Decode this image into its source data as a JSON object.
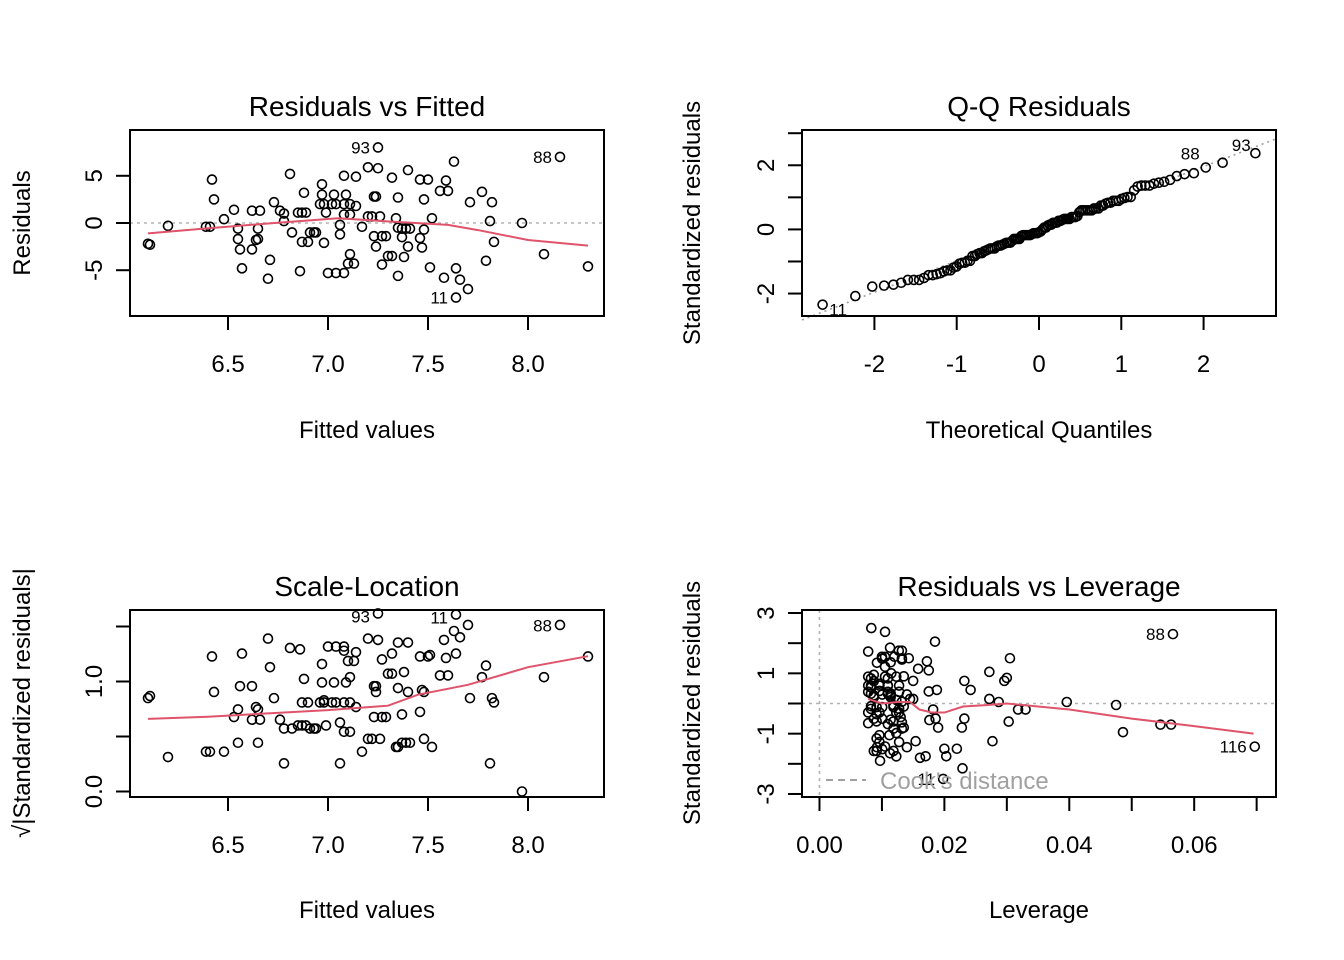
{
  "colors": {
    "smooth": "#DF536B",
    "points": "#000000",
    "reference": "#B3B3B3",
    "cooks": "#A0A0A0"
  },
  "chart_data": [
    {
      "id": "resid_fitted",
      "type": "scatter",
      "title": "Residuals vs Fitted",
      "xlabel": "Fitted values",
      "ylabel": "Residuals",
      "xlim": [
        6.01,
        8.38
      ],
      "ylim": [
        -9.85,
        9.85
      ],
      "xticks": [
        6.5,
        7.0,
        7.5,
        8.0
      ],
      "xtick_labels": [
        "6.5",
        "7.0",
        "7.5",
        "8.0"
      ],
      "yticks": [
        -5,
        0,
        5
      ],
      "ytick_labels": [
        "-5",
        "0",
        "5"
      ],
      "hline": 0,
      "points": [
        [
          6.1,
          -2.2
        ],
        [
          6.11,
          -2.3
        ],
        [
          6.2,
          -0.3
        ],
        [
          6.42,
          4.6
        ],
        [
          6.43,
          2.5
        ],
        [
          6.39,
          -0.4
        ],
        [
          6.41,
          -0.4
        ],
        [
          6.48,
          0.4
        ],
        [
          6.53,
          1.4
        ],
        [
          6.55,
          -0.6
        ],
        [
          6.55,
          -1.7
        ],
        [
          6.56,
          -2.8
        ],
        [
          6.57,
          -4.8
        ],
        [
          6.62,
          1.3
        ],
        [
          6.66,
          1.3
        ],
        [
          6.65,
          -0.6
        ],
        [
          6.64,
          -1.8
        ],
        [
          6.65,
          -1.7
        ],
        [
          6.62,
          -2.8
        ],
        [
          6.71,
          -3.9
        ],
        [
          6.7,
          -5.9
        ],
        [
          6.73,
          2.2
        ],
        [
          6.76,
          1.3
        ],
        [
          6.78,
          1.0
        ],
        [
          6.78,
          0.2
        ],
        [
          6.81,
          5.2
        ],
        [
          6.82,
          -1.0
        ],
        [
          6.85,
          1.1
        ],
        [
          6.87,
          1.1
        ],
        [
          6.89,
          1.1
        ],
        [
          6.88,
          3.2
        ],
        [
          6.87,
          -2.0
        ],
        [
          6.9,
          -2.0
        ],
        [
          6.91,
          -1.0
        ],
        [
          6.93,
          -1.0
        ],
        [
          6.94,
          -1.0
        ],
        [
          6.86,
          -5.1
        ],
        [
          6.98,
          -2.1
        ],
        [
          6.97,
          4.1
        ],
        [
          6.97,
          3.0
        ],
        [
          6.96,
          2.0
        ],
        [
          6.98,
          2.0
        ],
        [
          6.99,
          1.1
        ],
        [
          7.0,
          -5.3
        ],
        [
          7.04,
          -5.3
        ],
        [
          7.08,
          -5.3
        ],
        [
          7.03,
          3.0
        ],
        [
          7.02,
          2.0
        ],
        [
          7.04,
          2.0
        ],
        [
          7.08,
          5.0
        ],
        [
          7.14,
          4.9
        ],
        [
          7.09,
          3.0
        ],
        [
          7.08,
          2.0
        ],
        [
          7.11,
          2.0
        ],
        [
          7.14,
          1.8
        ],
        [
          7.11,
          0.9
        ],
        [
          7.08,
          0.9
        ],
        [
          7.06,
          -0.2
        ],
        [
          7.06,
          -1.2
        ],
        [
          7.11,
          -3.3
        ],
        [
          7.1,
          -4.3
        ],
        [
          7.13,
          -4.3
        ],
        [
          7.17,
          -0.4
        ],
        [
          7.2,
          5.9
        ],
        [
          7.25,
          8.0
        ],
        [
          7.25,
          5.8
        ],
        [
          7.23,
          2.8
        ],
        [
          7.24,
          2.8
        ],
        [
          7.2,
          0.7
        ],
        [
          7.22,
          0.7
        ],
        [
          7.26,
          0.7
        ],
        [
          7.23,
          -1.4
        ],
        [
          7.27,
          -1.4
        ],
        [
          7.29,
          -1.4
        ],
        [
          7.24,
          -2.5
        ],
        [
          7.3,
          -3.5
        ],
        [
          7.32,
          -3.5
        ],
        [
          7.27,
          -4.4
        ],
        [
          7.35,
          -5.6
        ],
        [
          7.32,
          4.8
        ],
        [
          7.4,
          5.6
        ],
        [
          7.35,
          2.7
        ],
        [
          7.34,
          0.5
        ],
        [
          7.35,
          -0.5
        ],
        [
          7.37,
          -0.6
        ],
        [
          7.39,
          -0.6
        ],
        [
          7.41,
          -0.6
        ],
        [
          7.37,
          -1.5
        ],
        [
          7.4,
          -2.5
        ],
        [
          7.38,
          -3.6
        ],
        [
          7.46,
          4.6
        ],
        [
          7.5,
          4.6
        ],
        [
          7.48,
          2.5
        ],
        [
          7.46,
          -1.6
        ],
        [
          7.47,
          -2.6
        ],
        [
          7.48,
          -0.7
        ],
        [
          7.52,
          0.5
        ],
        [
          7.51,
          -4.7
        ],
        [
          7.56,
          3.4
        ],
        [
          7.6,
          3.4
        ],
        [
          7.59,
          4.5
        ],
        [
          7.63,
          6.5
        ],
        [
          7.58,
          -5.8
        ],
        [
          7.64,
          -4.8
        ],
        [
          7.66,
          -6.0
        ],
        [
          7.64,
          -7.9
        ],
        [
          7.7,
          -7.0
        ],
        [
          7.71,
          2.2
        ],
        [
          7.77,
          3.3
        ],
        [
          7.82,
          2.2
        ],
        [
          7.81,
          0.2
        ],
        [
          7.83,
          -2.0
        ],
        [
          7.79,
          -4.0
        ],
        [
          7.97,
          0.0
        ],
        [
          8.08,
          -3.3
        ],
        [
          8.16,
          7.0
        ],
        [
          8.3,
          -4.6
        ]
      ],
      "smooth": [
        [
          6.1,
          -1.1
        ],
        [
          6.38,
          -0.6
        ],
        [
          6.7,
          -0.05
        ],
        [
          7.05,
          0.5
        ],
        [
          7.35,
          0.1
        ],
        [
          7.6,
          -0.2
        ],
        [
          7.75,
          -0.75
        ],
        [
          8.0,
          -1.8
        ],
        [
          8.3,
          -2.4
        ]
      ],
      "labels": [
        {
          "text": "93",
          "x": 7.25,
          "y": 8.0
        },
        {
          "text": "88",
          "x": 8.16,
          "y": 7.0
        },
        {
          "text": "11",
          "x": 7.64,
          "y": -7.9
        }
      ]
    },
    {
      "id": "qq",
      "type": "scatter",
      "title": "Q-Q Residuals",
      "xlabel": "Theoretical Quantiles",
      "ylabel": "Standardized residuals",
      "xlim": [
        -2.88,
        2.88
      ],
      "ylim": [
        -2.7,
        3.1
      ],
      "xticks": [
        -2,
        -1,
        0,
        1,
        2
      ],
      "xtick_labels": [
        "-2",
        "-1",
        "0",
        "1",
        "2"
      ],
      "yticks": [
        -2,
        -1,
        0,
        1,
        2,
        3
      ],
      "ytick_labels": [
        "-2",
        "",
        "0",
        "",
        "2",
        ""
      ],
      "n": 117,
      "refline": {
        "intercept": 0.0,
        "slope": 0.98
      },
      "labels": [
        {
          "text": "11",
          "x": -2.67,
          "y": -2.5
        },
        {
          "text": "88",
          "x": 2.05,
          "y": 2.25
        },
        {
          "text": "93",
          "x": 2.67,
          "y": 2.5
        }
      ]
    },
    {
      "id": "scale_location",
      "type": "scatter",
      "title": "Scale-Location",
      "xlabel": "Fitted values",
      "ylabel": "√|Standardized residuals|",
      "xlim": [
        6.01,
        8.38
      ],
      "ylim": [
        -0.05,
        1.65
      ],
      "xticks": [
        6.5,
        7.0,
        7.5,
        8.0
      ],
      "xtick_labels": [
        "6.5",
        "7.0",
        "7.5",
        "8.0"
      ],
      "yticks": [
        0.0,
        0.5,
        1.0,
        1.5
      ],
      "ytick_labels": [
        "0.0",
        "",
        "1.0",
        ""
      ],
      "smooth": [
        [
          6.1,
          0.66
        ],
        [
          6.4,
          0.68
        ],
        [
          6.7,
          0.71
        ],
        [
          7.0,
          0.74
        ],
        [
          7.3,
          0.78
        ],
        [
          7.45,
          0.88
        ],
        [
          7.7,
          0.97
        ],
        [
          8.0,
          1.13
        ],
        [
          8.3,
          1.23
        ]
      ],
      "labels": [
        {
          "text": "93",
          "x": 7.25,
          "y": 1.59
        },
        {
          "text": "11",
          "x": 7.64,
          "y": 1.58
        },
        {
          "text": "88",
          "x": 8.16,
          "y": 1.51
        }
      ]
    },
    {
      "id": "resid_leverage",
      "type": "scatter",
      "title": "Residuals vs Leverage",
      "xlabel": "Leverage",
      "ylabel": "Standardized residuals",
      "xlim": [
        -0.0028,
        0.0731
      ],
      "ylim": [
        -3.1,
        3.1
      ],
      "xticks": [
        0.0,
        0.01,
        0.02,
        0.03,
        0.04,
        0.05,
        0.06,
        0.07
      ],
      "xtick_labels": [
        "0.00",
        "",
        "0.02",
        "",
        "0.04",
        "",
        "0.06",
        ""
      ],
      "yticks": [
        -3,
        -2,
        -1,
        0,
        1,
        2,
        3
      ],
      "ytick_labels": [
        "-3",
        "",
        "-1",
        "",
        "1",
        "",
        "3"
      ],
      "legend": "Cook's distance",
      "legend_position": "bottom-left",
      "smooth": [
        [
          0.0078,
          0.15
        ],
        [
          0.01,
          0.0
        ],
        [
          0.0125,
          0.05
        ],
        [
          0.0145,
          0.05
        ],
        [
          0.016,
          -0.2
        ],
        [
          0.018,
          -0.3
        ],
        [
          0.02,
          -0.3
        ],
        [
          0.023,
          -0.1
        ],
        [
          0.027,
          -0.05
        ],
        [
          0.03,
          0.0
        ],
        [
          0.04,
          -0.2
        ],
        [
          0.05,
          -0.5
        ],
        [
          0.06,
          -0.75
        ],
        [
          0.0695,
          -1.0
        ]
      ],
      "extra_points": [
        [
          0.0083,
          2.5
        ],
        [
          0.0185,
          2.05
        ],
        [
          0.0305,
          1.5
        ],
        [
          0.0272,
          1.05
        ],
        [
          0.0296,
          0.75
        ],
        [
          0.03,
          0.85
        ],
        [
          0.0232,
          0.75
        ],
        [
          0.0242,
          0.45
        ],
        [
          0.0272,
          0.15
        ],
        [
          0.0287,
          0.05
        ],
        [
          0.0396,
          0.05
        ],
        [
          0.0475,
          -0.05
        ],
        [
          0.0486,
          -0.95
        ],
        [
          0.0546,
          -0.7
        ],
        [
          0.0563,
          -0.7
        ],
        [
          0.0303,
          -0.6
        ],
        [
          0.0318,
          -0.2
        ],
        [
          0.033,
          -0.2
        ],
        [
          0.0232,
          -0.5
        ],
        [
          0.0228,
          -0.8
        ],
        [
          0.0277,
          -1.25
        ],
        [
          0.02,
          -1.5
        ],
        [
          0.022,
          -1.5
        ],
        [
          0.0203,
          -1.75
        ],
        [
          0.0229,
          -2.15
        ],
        [
          0.0198,
          -2.5
        ],
        [
          0.0154,
          -1.25
        ],
        [
          0.014,
          -1.45
        ],
        [
          0.0161,
          -1.8
        ],
        [
          0.017,
          -1.75
        ],
        [
          0.0176,
          -0.55
        ],
        [
          0.0186,
          -0.5
        ],
        [
          0.019,
          -0.8
        ],
        [
          0.0182,
          -0.2
        ],
        [
          0.0175,
          0.4
        ],
        [
          0.0188,
          0.45
        ],
        [
          0.0172,
          1.4
        ],
        [
          0.0158,
          1.15
        ],
        [
          0.0175,
          1.1
        ],
        [
          0.015,
          0.75
        ],
        [
          0.0135,
          0.9
        ],
        [
          0.0127,
          1.75
        ],
        [
          0.0113,
          1.85
        ],
        [
          0.0132,
          1.5
        ],
        [
          0.0143,
          1.5
        ],
        [
          0.012,
          1.55
        ],
        [
          0.01,
          1.55
        ],
        [
          0.0092,
          1.35
        ],
        [
          0.0115,
          1.0
        ],
        [
          0.014,
          0.3
        ],
        [
          0.0145,
          0.15
        ],
        [
          0.015,
          0.15
        ],
        [
          0.0135,
          -0.1
        ],
        [
          0.013,
          -0.45
        ],
        [
          0.0135,
          -0.8
        ],
        [
          0.0112,
          -1.05
        ],
        [
          0.0096,
          -1.05
        ],
        [
          0.0092,
          -1.45
        ],
        [
          0.0113,
          -1.65
        ],
        [
          0.0097,
          -1.9
        ]
      ],
      "labels": [
        {
          "text": "88",
          "x": 0.0566,
          "y": 2.3
        },
        {
          "text": "116",
          "x": 0.0697,
          "y": -1.43
        },
        {
          "text": "11",
          "x": 0.0198,
          "y": -2.5
        }
      ]
    }
  ]
}
